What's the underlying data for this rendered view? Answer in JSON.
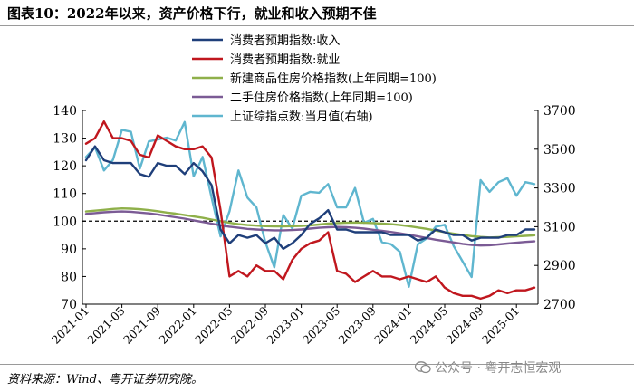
{
  "title": "图表10：2022年以来，资产价格下行，就业和收入预期不佳",
  "source": "资料来源：Wind、粤开证券研究院。",
  "watermark": "公众号 · 粤开志恒宏观",
  "chart_data": {
    "type": "line",
    "title": "图表10：2022年以来，资产价格下行，就业和收入预期不佳",
    "x_tick_labels": [
      "2021-01",
      "2021-05",
      "2021-09",
      "2022-01",
      "2022-05",
      "2022-09",
      "2023-01",
      "2023-05",
      "2023-09",
      "2024-01",
      "2024-05",
      "2024-09",
      "2025-01"
    ],
    "x": [
      "2021-01",
      "2021-02",
      "2021-03",
      "2021-04",
      "2021-05",
      "2021-06",
      "2021-07",
      "2021-08",
      "2021-09",
      "2021-10",
      "2021-11",
      "2021-12",
      "2022-01",
      "2022-02",
      "2022-03",
      "2022-04",
      "2022-05",
      "2022-06",
      "2022-07",
      "2022-08",
      "2022-09",
      "2022-10",
      "2022-11",
      "2022-12",
      "2023-01",
      "2023-02",
      "2023-03",
      "2023-04",
      "2023-05",
      "2023-06",
      "2023-07",
      "2023-08",
      "2023-09",
      "2023-10",
      "2023-11",
      "2023-12",
      "2024-01",
      "2024-02",
      "2024-03",
      "2024-04",
      "2024-05",
      "2024-06",
      "2024-07",
      "2024-08",
      "2024-09",
      "2024-10",
      "2024-11",
      "2024-12",
      "2025-01",
      "2025-02",
      "2025-03"
    ],
    "ylim_left": [
      70,
      140
    ],
    "yticks_left": [
      70,
      80,
      90,
      100,
      110,
      120,
      130,
      140
    ],
    "ylim_right": [
      2700,
      3700
    ],
    "yticks_right": [
      2700,
      2900,
      3100,
      3300,
      3500,
      3700
    ],
    "reference_line": {
      "value": 100,
      "style": "dashed",
      "color": "#000000"
    },
    "legend_position": "top-center",
    "series": [
      {
        "name": "消费者预期指数:收入",
        "axis": "left",
        "color": "#1f3f7a",
        "values": [
          122,
          127,
          122,
          121,
          121,
          121,
          117,
          116,
          121,
          120,
          120,
          117,
          121,
          118,
          113,
          97,
          92,
          95,
          94,
          95,
          92,
          94,
          90,
          92,
          95,
          99,
          101,
          104,
          97,
          97,
          96,
          96,
          96,
          96,
          95,
          95,
          95,
          93,
          94,
          97,
          96,
          95,
          95,
          93,
          94,
          94,
          94,
          95,
          95,
          97,
          97
        ]
      },
      {
        "name": "消费者预期指数:就业",
        "axis": "left",
        "color": "#c0171e",
        "values": [
          128,
          130,
          136,
          130,
          130,
          129,
          124,
          123,
          131,
          129,
          127,
          126,
          126,
          127,
          123,
          104,
          80,
          82,
          80,
          84,
          82,
          82,
          79,
          86,
          90,
          92,
          93,
          96,
          82,
          81,
          78,
          80,
          82,
          80,
          80,
          79,
          80,
          79,
          78,
          80,
          76,
          74,
          73,
          73,
          72,
          73,
          75,
          74,
          75,
          75,
          76
        ]
      },
      {
        "name": "新建商品住房价格指数(上年同期=100)",
        "axis": "left",
        "color": "#8fb04a",
        "values": [
          103.5,
          103.8,
          104.1,
          104.4,
          104.6,
          104.5,
          104.3,
          104.0,
          103.6,
          103.1,
          102.7,
          102.2,
          101.7,
          101.2,
          100.6,
          100.0,
          99.4,
          98.9,
          98.6,
          98.4,
          98.2,
          98.1,
          98.1,
          98.2,
          98.3,
          98.5,
          98.8,
          99.1,
          99.3,
          99.4,
          99.5,
          99.4,
          99.3,
          99.1,
          98.9,
          98.6,
          98.2,
          97.7,
          97.2,
          96.6,
          96.0,
          95.5,
          95.0,
          94.6,
          94.3,
          94.1,
          94.2,
          94.3,
          94.5,
          94.7,
          94.9
        ]
      },
      {
        "name": "二手住房价格指数(上年同期=100)",
        "axis": "left",
        "color": "#7b5b95",
        "values": [
          102.6,
          102.9,
          103.2,
          103.4,
          103.5,
          103.4,
          103.1,
          102.8,
          102.4,
          101.9,
          101.4,
          100.9,
          100.3,
          99.7,
          99.1,
          98.5,
          98.0,
          97.6,
          97.2,
          97.0,
          96.8,
          96.7,
          96.7,
          96.8,
          97.0,
          97.3,
          97.6,
          97.8,
          97.9,
          97.8,
          97.6,
          97.3,
          96.9,
          96.5,
          96.1,
          95.6,
          95.1,
          94.5,
          93.9,
          93.3,
          92.8,
          92.3,
          91.8,
          91.4,
          91.2,
          91.3,
          91.6,
          91.9,
          92.2,
          92.5,
          92.7
        ]
      },
      {
        "name": "上证综指点数:当月值(右轴)",
        "axis": "right",
        "color": "#5fb6cf",
        "values": [
          3460,
          3510,
          3390,
          3445,
          3600,
          3590,
          3400,
          3540,
          3550,
          3560,
          3545,
          3640,
          3360,
          3460,
          3250,
          3050,
          3180,
          3390,
          3250,
          3200,
          3020,
          2890,
          3160,
          3090,
          3260,
          3280,
          3275,
          3320,
          3200,
          3200,
          3300,
          3120,
          3140,
          3020,
          3010,
          2970,
          2790,
          3010,
          3040,
          3100,
          3110,
          3000,
          2920,
          2840,
          3340,
          3280,
          3330,
          3350,
          3260,
          3330,
          3320
        ]
      }
    ]
  }
}
